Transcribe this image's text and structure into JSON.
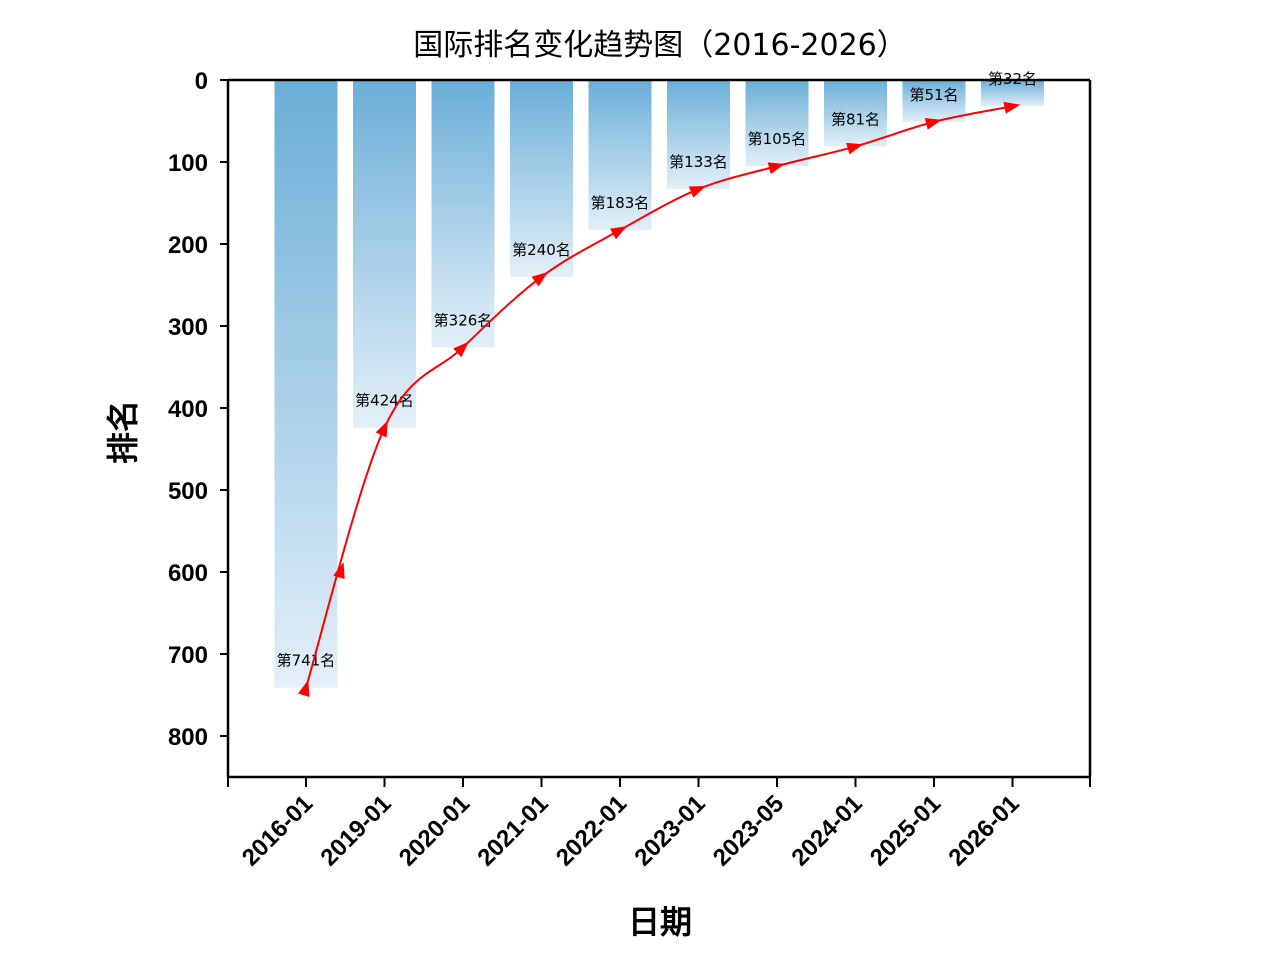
{
  "chart_data": {
    "type": "bar",
    "title": "国际排名变化趋势图（2016-2026）",
    "xlabel": "日期",
    "ylabel": "排名",
    "categories": [
      "2016-01",
      "2019-01",
      "2020-01",
      "2021-01",
      "2022-01",
      "2023-01",
      "2023-05",
      "2024-01",
      "2025-01",
      "2026-01"
    ],
    "values": [
      741,
      424,
      326,
      240,
      183,
      133,
      105,
      81,
      51,
      32
    ],
    "data_labels": [
      "第741名",
      "第424名",
      "第326名",
      "第240名",
      "第183名",
      "第133名",
      "第105名",
      "第81名",
      "第51名",
      "第32名"
    ],
    "y_ticks": [
      0,
      100,
      200,
      300,
      400,
      500,
      600,
      700,
      800
    ],
    "ylim": [
      0,
      850
    ],
    "y_inverted": true,
    "overlay_line": {
      "type": "smooth-line-with-arrows",
      "x_category_index": [
        0,
        1,
        2,
        3,
        4,
        5,
        6,
        7,
        8,
        9
      ],
      "values": [
        741,
        424,
        326,
        240,
        183,
        133,
        105,
        81,
        51,
        32
      ]
    },
    "grid": false,
    "legend": "none",
    "colors": {
      "bar_top": "#6aaed8",
      "bar_bottom": "#e3eff8",
      "line": "#ff0000"
    }
  }
}
